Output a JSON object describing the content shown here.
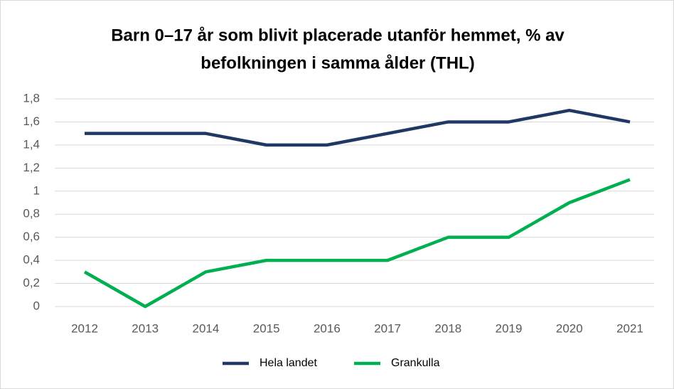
{
  "chart_data": {
    "type": "line",
    "title": [
      "Barn 0–17 år som blivit placerade utanför hemmet, % av",
      "befolkningen i samma ålder (THL)"
    ],
    "categories": [
      "2012",
      "2013",
      "2014",
      "2015",
      "2016",
      "2017",
      "2018",
      "2019",
      "2020",
      "2021"
    ],
    "series": [
      {
        "name": "Hela landet",
        "color": "#203864",
        "values": [
          1.5,
          1.5,
          1.5,
          1.4,
          1.4,
          1.5,
          1.6,
          1.6,
          1.7,
          1.6
        ]
      },
      {
        "name": "Grankulla",
        "color": "#00b050",
        "values": [
          0.3,
          0,
          0.3,
          0.4,
          0.4,
          0.4,
          0.6,
          0.6,
          0.9,
          1.1
        ]
      }
    ],
    "ylim": [
      0,
      1.8
    ],
    "yticks": [
      0,
      {
        "value": 0.2,
        "label": "0,2"
      },
      {
        "value": 0.4,
        "label": "0,4"
      },
      {
        "value": 0.6,
        "label": "0,6"
      },
      {
        "value": 0.8,
        "label": "0,8"
      },
      1,
      {
        "value": 1.2,
        "label": "1,2"
      },
      {
        "value": 1.4,
        "label": "1,4"
      },
      {
        "value": 1.6,
        "label": "1,6"
      },
      {
        "value": 1.8,
        "label": "1,8"
      }
    ],
    "grid": true,
    "legend": "bottom"
  }
}
